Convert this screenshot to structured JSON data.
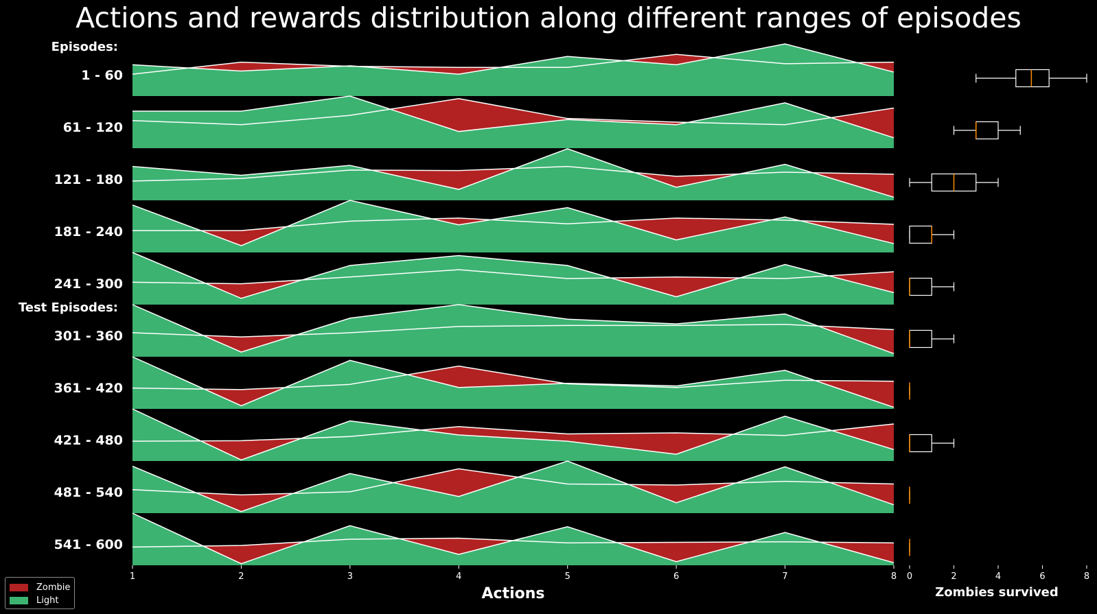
{
  "chart_data": {
    "type": "area",
    "title": "Actions and rewards distribution along different ranges of episodes",
    "xlabel": "Actions",
    "x": [
      1,
      2,
      3,
      4,
      5,
      6,
      7,
      8
    ],
    "xlim": [
      1,
      8
    ],
    "group_labels": {
      "train": "Episodes:",
      "test": "Test Episodes:"
    },
    "colors": {
      "zombie": "#b22222",
      "light": "#3cb371",
      "line": "#ffffff",
      "median": "#ff8c00",
      "background": "#000000"
    },
    "legend": {
      "position": "bottom-left",
      "entries": [
        {
          "label": "Zombie",
          "color": "#b22222"
        },
        {
          "label": "Light",
          "color": "#3cb371"
        }
      ]
    },
    "rows": [
      {
        "label": "1 - 60",
        "group": "train",
        "zombie": [
          0.42,
          0.65,
          0.57,
          0.55,
          0.55,
          0.8,
          0.62,
          0.65
        ],
        "light": [
          0.6,
          0.48,
          0.58,
          0.42,
          0.76,
          0.6,
          1.0,
          0.46
        ]
      },
      {
        "label": "61 - 120",
        "group": "train",
        "zombie": [
          0.53,
          0.45,
          0.63,
          0.95,
          0.57,
          0.5,
          0.45,
          0.77
        ],
        "light": [
          0.71,
          0.71,
          1.0,
          0.32,
          0.55,
          0.45,
          0.87,
          0.2
        ]
      },
      {
        "label": "121 - 180",
        "group": "train",
        "zombie": [
          0.37,
          0.42,
          0.58,
          0.57,
          0.65,
          0.46,
          0.54,
          0.5
        ],
        "light": [
          0.65,
          0.48,
          0.67,
          0.21,
          0.99,
          0.25,
          0.69,
          0.06
        ]
      },
      {
        "label": "181 - 240",
        "group": "train",
        "zombie": [
          0.42,
          0.42,
          0.6,
          0.66,
          0.55,
          0.66,
          0.62,
          0.54
        ],
        "light": [
          0.91,
          0.13,
          1.0,
          0.53,
          0.86,
          0.24,
          0.68,
          0.17
        ]
      },
      {
        "label": "241 - 300",
        "group": "train",
        "zombie": [
          0.43,
          0.4,
          0.53,
          0.67,
          0.5,
          0.53,
          0.5,
          0.63
        ],
        "light": [
          1.0,
          0.12,
          0.75,
          0.94,
          0.75,
          0.15,
          0.77,
          0.23
        ]
      },
      {
        "label": "301 - 360",
        "group": "test",
        "zombie": [
          0.46,
          0.38,
          0.46,
          0.58,
          0.6,
          0.6,
          0.62,
          0.52
        ],
        "light": [
          1.0,
          0.09,
          0.74,
          1.0,
          0.72,
          0.63,
          0.82,
          0.06
        ]
      },
      {
        "label": "361 - 420",
        "group": "test",
        "zombie": [
          0.4,
          0.37,
          0.47,
          0.82,
          0.48,
          0.41,
          0.55,
          0.53
        ],
        "light": [
          1.0,
          0.06,
          0.93,
          0.41,
          0.49,
          0.44,
          0.74,
          0.03
        ]
      },
      {
        "label": "421 - 480",
        "group": "test",
        "zombie": [
          0.38,
          0.39,
          0.47,
          0.66,
          0.52,
          0.54,
          0.49,
          0.71
        ],
        "light": [
          1.0,
          0.02,
          0.77,
          0.5,
          0.38,
          0.13,
          0.86,
          0.22
        ]
      },
      {
        "label": "481 - 540",
        "group": "test",
        "zombie": [
          0.45,
          0.35,
          0.41,
          0.85,
          0.56,
          0.54,
          0.61,
          0.56
        ],
        "light": [
          0.9,
          0.03,
          0.76,
          0.32,
          1.0,
          0.2,
          0.89,
          0.16
        ]
      },
      {
        "label": "541 - 600",
        "group": "test",
        "zombie": [
          0.35,
          0.38,
          0.5,
          0.52,
          0.43,
          0.44,
          0.45,
          0.43
        ],
        "light": [
          1.0,
          0.03,
          0.76,
          0.21,
          0.74,
          0.07,
          0.63,
          0.05
        ]
      }
    ],
    "boxplot": {
      "xlabel": "Zombies survived",
      "xlim": [
        0,
        8
      ],
      "xticks": [
        0,
        2,
        4,
        6,
        8
      ],
      "boxes": [
        {
          "label": "1 - 60",
          "whislo": 3,
          "q1": 4.8,
          "med": 5.5,
          "q3": 6.3,
          "whishi": 8
        },
        {
          "label": "61 - 120",
          "whislo": 2,
          "q1": 3,
          "med": 3,
          "q3": 4,
          "whishi": 5
        },
        {
          "label": "121 - 180",
          "whislo": 0,
          "q1": 1,
          "med": 2,
          "q3": 3,
          "whishi": 4
        },
        {
          "label": "181 - 240",
          "whislo": 0,
          "q1": 0,
          "med": 1,
          "q3": 1,
          "whishi": 2
        },
        {
          "label": "241 - 300",
          "whislo": 0,
          "q1": 0,
          "med": 0,
          "q3": 1,
          "whishi": 2
        },
        {
          "label": "301 - 360",
          "whislo": 0,
          "q1": 0,
          "med": 0,
          "q3": 1,
          "whishi": 2
        },
        {
          "label": "361 - 420",
          "whislo": 0,
          "q1": 0,
          "med": 0,
          "q3": 0,
          "whishi": 0
        },
        {
          "label": "421 - 480",
          "whislo": 0,
          "q1": 0,
          "med": 0,
          "q3": 1,
          "whishi": 2
        },
        {
          "label": "481 - 540",
          "whislo": 0,
          "q1": 0,
          "med": 0,
          "q3": 0,
          "whishi": 0
        },
        {
          "label": "541 - 600",
          "whislo": 0,
          "q1": 0,
          "med": 0,
          "q3": 0,
          "whishi": 0
        }
      ]
    }
  }
}
